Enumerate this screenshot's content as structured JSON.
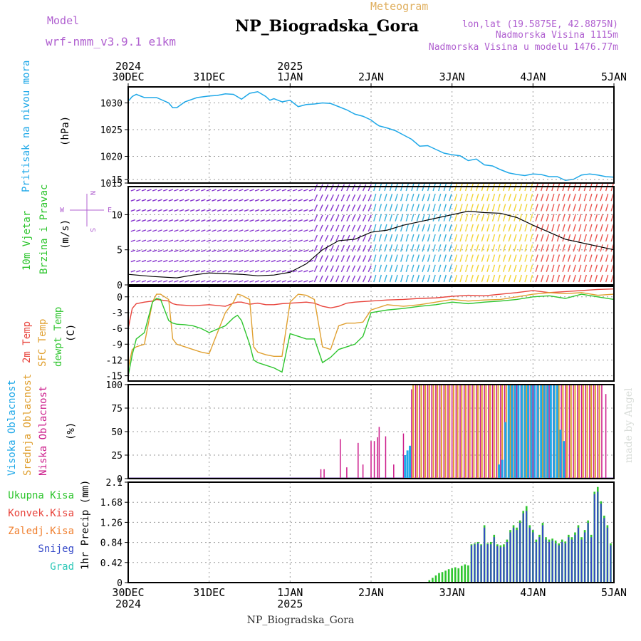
{
  "header": {
    "model_label": "Model",
    "model_name": "wrf-nmm_v3.9.1 e1km",
    "title": "NP_Biogradska_Gora",
    "meteogram_label": "Meteogram",
    "coords": "lon,lat (19.5875E, 42.8875N)",
    "altitude": "Nadmorska Visina 1115m",
    "model_altitude": "Nadmorska Visina u modelu 1476.77m"
  },
  "footer": {
    "station": "NP_Biogradska_Gora",
    "watermark": "made by Angel"
  },
  "time_axis": {
    "labels": [
      "30DEC",
      "31DEC",
      "1JAN",
      "2JAN",
      "3JAN",
      "4JAN",
      "5JAN"
    ],
    "years": [
      {
        "at": 0,
        "label": "2024"
      },
      {
        "at": 2,
        "label": "2025"
      }
    ],
    "day_count": 6
  },
  "colors": {
    "pressure": "#1fa8e8",
    "temp2m": "#e8443c",
    "sfc_temp": "#e0a030",
    "dewpt": "#2ec52e",
    "high_cloud": "#1fa8e8",
    "mid_cloud": "#e0a030",
    "low_cloud": "#cc1a8a",
    "total_precip": "#2ec52e",
    "conv_precip": "#e8443c",
    "frozen_precip": "#f08030",
    "snow": "#3448c8",
    "graupel": "#2ec8b8"
  },
  "panels": {
    "pressure": {
      "label1": "Pritisak na nivou mora",
      "unit": "(hPa)"
    },
    "wind": {
      "label1": "10m Vjetar",
      "label2": "Brzina i Pravac",
      "unit": "(m/s)"
    },
    "temp": {
      "label1": "2m Temp",
      "label2": "SFC Temp",
      "label3": "dewpt Temp",
      "unit": "(C)"
    },
    "cloud": {
      "label1": "Visoka Oblacnost",
      "label2": "Srednja Oblacnost",
      "label3": "Niska Oblacnost",
      "unit": "(%)"
    },
    "precip": {
      "label1": "Ukupna Kisa",
      "label2": "Konvek.Kisa",
      "label3": "Zaledj.Kisa",
      "label4": "Snijeg",
      "label5": "Grad",
      "ylabel": "1hr Precip (mm)"
    }
  },
  "compass": {
    "n": "N",
    "s": "S",
    "w": "W",
    "e": "E"
  },
  "chart_data": [
    {
      "type": "line",
      "name": "pressure",
      "x_days": [
        0,
        0.05,
        0.1,
        0.2,
        0.35,
        0.5,
        0.55,
        0.6,
        0.7,
        0.85,
        1.0,
        1.1,
        1.2,
        1.3,
        1.4,
        1.5,
        1.6,
        1.7,
        1.75,
        1.8,
        1.9,
        2.0,
        2.1,
        2.2,
        2.3,
        2.4,
        2.5,
        2.6,
        2.7,
        2.8,
        2.9,
        3.0,
        3.05,
        3.1,
        3.2,
        3.3,
        3.4,
        3.5,
        3.6,
        3.7,
        3.8,
        3.9,
        4.0,
        4.1,
        4.2,
        4.3,
        4.4,
        4.5,
        4.6,
        4.7,
        4.8,
        4.9,
        5.0,
        5.1,
        5.2,
        5.3,
        5.4,
        5.5,
        5.6,
        5.7,
        5.8,
        5.9,
        6.0
      ],
      "y": [
        1030.3,
        1031.2,
        1031.6,
        1031.0,
        1031.0,
        1030.0,
        1029.1,
        1029.1,
        1030.2,
        1031.0,
        1031.3,
        1031.4,
        1031.7,
        1031.6,
        1030.7,
        1031.8,
        1032.1,
        1031.2,
        1030.5,
        1030.8,
        1030.2,
        1030.5,
        1029.3,
        1029.7,
        1029.8,
        1030.0,
        1029.9,
        1029.3,
        1028.7,
        1027.9,
        1027.5,
        1026.8,
        1026.2,
        1025.7,
        1025.3,
        1024.8,
        1024.0,
        1023.2,
        1021.9,
        1022.0,
        1021.3,
        1020.6,
        1020.3,
        1020.1,
        1019.2,
        1019.5,
        1018.4,
        1018.2,
        1017.5,
        1016.9,
        1016.6,
        1016.4,
        1016.7,
        1016.6,
        1016.2,
        1016.2,
        1015.5,
        1015.7,
        1016.5,
        1016.7,
        1016.5,
        1016.2,
        1016.1
      ],
      "ylim": [
        1015,
        1033
      ],
      "ticks": [
        1015,
        1020,
        1025,
        1030
      ]
    },
    {
      "type": "line",
      "name": "wind",
      "x_days": [
        0,
        0.3,
        0.6,
        0.8,
        1.0,
        1.2,
        1.4,
        1.6,
        1.8,
        2.0,
        2.2,
        2.4,
        2.6,
        2.8,
        3.0,
        3.2,
        3.4,
        3.6,
        3.8,
        4.0,
        4.2,
        4.4,
        4.6,
        4.8,
        5.0,
        5.2,
        5.4,
        5.6,
        5.8,
        6.0
      ],
      "y": [
        1.5,
        1.2,
        1.0,
        1.4,
        1.7,
        1.6,
        1.5,
        1.3,
        1.4,
        1.8,
        3.0,
        5.0,
        6.3,
        6.5,
        7.5,
        7.8,
        8.5,
        9.0,
        9.5,
        10.0,
        10.5,
        10.3,
        10.2,
        9.6,
        8.5,
        7.5,
        6.5,
        6.0,
        5.5,
        5.0
      ],
      "barb_colors_by_day": [
        "#7a20c8",
        "#7a20c8",
        "#7a20c8",
        "#22a8d8",
        "#f0d020",
        "#e8443c"
      ],
      "ylim": [
        0,
        14
      ],
      "ticks": [
        0,
        5,
        10,
        15
      ]
    },
    {
      "type": "line",
      "name": "temperature",
      "x_days": [
        0,
        0.05,
        0.1,
        0.2,
        0.3,
        0.35,
        0.4,
        0.5,
        0.55,
        0.6,
        0.7,
        0.8,
        0.9,
        1.0,
        1.2,
        1.3,
        1.35,
        1.4,
        1.5,
        1.55,
        1.6,
        1.7,
        1.8,
        1.9,
        2.0,
        2.1,
        2.2,
        2.3,
        2.4,
        2.5,
        2.6,
        2.7,
        2.8,
        2.9,
        3.0,
        3.2,
        3.4,
        3.6,
        3.8,
        4.0,
        4.2,
        4.4,
        4.6,
        4.8,
        5.0,
        5.2,
        5.4,
        5.6,
        5.8,
        6.0
      ],
      "series": [
        {
          "name": "2m Temp",
          "values": [
            -6.0,
            -2.2,
            -1.3,
            -1.0,
            -0.8,
            -0.5,
            -0.6,
            -0.8,
            -1.3,
            -1.5,
            -1.6,
            -1.7,
            -1.6,
            -1.5,
            -1.8,
            -1.2,
            -1.0,
            -1.0,
            -1.4,
            -1.3,
            -1.2,
            -1.5,
            -1.5,
            -1.3,
            -1.2,
            -1.1,
            -1.0,
            -1.2,
            -1.8,
            -2.1,
            -1.8,
            -1.2,
            -1.0,
            -0.9,
            -0.8,
            -0.6,
            -0.5,
            -0.3,
            -0.2,
            0.1,
            0.3,
            0.2,
            0.5,
            0.8,
            1.2,
            0.8,
            1.0,
            1.2,
            1.4,
            1.5
          ]
        },
        {
          "name": "SFC Temp",
          "values": [
            -13.5,
            -10.0,
            -9.5,
            -9.0,
            -1.0,
            0.5,
            0.5,
            -0.5,
            -8.0,
            -9.0,
            -9.5,
            -10.0,
            -10.5,
            -10.8,
            -3.0,
            -1.0,
            0.5,
            0.3,
            -0.5,
            -9.5,
            -10.5,
            -11.0,
            -11.3,
            -11.3,
            -1.0,
            0.5,
            0.3,
            -0.5,
            -9.5,
            -10.0,
            -5.5,
            -5.0,
            -5.0,
            -4.8,
            -2.5,
            -1.5,
            -1.8,
            -1.5,
            -1.0,
            -0.5,
            -0.8,
            -0.6,
            -0.5,
            0.0,
            0.5,
            0.8,
            0.6,
            0.8,
            0.3,
            0.5
          ]
        },
        {
          "name": "dewpt Temp",
          "values": [
            -15.0,
            -11.0,
            -8.0,
            -6.8,
            -1.0,
            -0.3,
            -0.5,
            -4.5,
            -5.0,
            -5.2,
            -5.3,
            -5.5,
            -6.0,
            -6.8,
            -5.5,
            -4.0,
            -3.5,
            -4.5,
            -9.0,
            -12.0,
            -12.5,
            -13.0,
            -13.5,
            -14.3,
            -7.0,
            -7.5,
            -8.0,
            -8.0,
            -12.5,
            -11.5,
            -10.0,
            -9.5,
            -9.0,
            -7.5,
            -3.0,
            -2.5,
            -2.2,
            -1.8,
            -1.5,
            -1.0,
            -1.3,
            -1.0,
            -0.8,
            -0.5,
            0.0,
            0.2,
            -0.3,
            0.5,
            0.0,
            -0.5
          ]
        }
      ],
      "ylim": [
        -16,
        2
      ],
      "ticks": [
        -15,
        -12,
        -9,
        -6,
        -3,
        0
      ]
    },
    {
      "type": "bar",
      "name": "cloud_cover",
      "series": [
        {
          "name": "Niska Oblacnost",
          "x_days": [
            2.38,
            2.42,
            2.62,
            2.7,
            2.84,
            2.9,
            3.0,
            3.04,
            3.08,
            3.1,
            3.18,
            3.28,
            3.4,
            3.45,
            3.5,
            3.55,
            3.6,
            3.65,
            3.7,
            3.75,
            3.8,
            3.85,
            3.9,
            3.95,
            4.0,
            4.05,
            4.1,
            4.15,
            4.2,
            4.25,
            4.3,
            4.35,
            4.4,
            4.45,
            4.5,
            4.55,
            4.6,
            4.65,
            4.7,
            4.75,
            4.8,
            4.85,
            4.9,
            4.95,
            5.0,
            5.05,
            5.1,
            5.15,
            5.2,
            5.25,
            5.3,
            5.35,
            5.4,
            5.45,
            5.5,
            5.55,
            5.6,
            5.65,
            5.7,
            5.75,
            5.8,
            5.85,
            5.9
          ],
          "values": [
            10,
            10,
            42,
            12,
            38,
            15,
            40,
            40,
            44,
            55,
            45,
            15,
            48,
            8,
            95,
            100,
            100,
            100,
            100,
            100,
            100,
            100,
            100,
            100,
            100,
            100,
            100,
            100,
            100,
            100,
            100,
            100,
            100,
            100,
            100,
            100,
            100,
            100,
            100,
            100,
            100,
            100,
            100,
            100,
            100,
            100,
            100,
            100,
            100,
            100,
            100,
            100,
            100,
            100,
            100,
            100,
            100,
            100,
            100,
            100,
            100,
            100,
            90
          ]
        },
        {
          "name": "Srednja Oblacnost",
          "x_days": [
            3.52,
            3.57,
            3.62,
            3.67,
            3.72,
            3.77,
            3.82,
            3.87,
            3.92,
            3.97,
            4.02,
            4.07,
            4.12,
            4.17,
            4.22,
            4.27,
            4.32,
            4.37,
            4.42,
            4.47,
            4.52,
            4.57,
            4.62,
            4.67,
            4.72,
            4.77,
            4.82,
            4.87,
            4.92,
            4.97,
            5.02,
            5.07,
            5.12,
            5.17,
            5.22,
            5.27,
            5.32,
            5.37,
            5.42,
            5.47,
            5.52,
            5.57,
            5.62,
            5.67,
            5.72,
            5.77,
            5.82
          ],
          "values": [
            100,
            100,
            100,
            100,
            100,
            100,
            100,
            100,
            100,
            100,
            100,
            100,
            100,
            100,
            100,
            100,
            100,
            100,
            100,
            100,
            100,
            100,
            100,
            100,
            100,
            100,
            100,
            100,
            100,
            100,
            100,
            100,
            100,
            100,
            100,
            100,
            100,
            100,
            100,
            100,
            100,
            100,
            100,
            100,
            100,
            100,
            100
          ]
        },
        {
          "name": "Visoka Oblacnost",
          "x_days": [
            3.42,
            3.45,
            3.48,
            4.58,
            4.62,
            4.66,
            4.7,
            4.74,
            4.78,
            4.82,
            4.86,
            4.9,
            4.94,
            4.98,
            5.02,
            5.06,
            5.1,
            5.14,
            5.18,
            5.22,
            5.26,
            5.3,
            5.34,
            5.38
          ],
          "values": [
            25,
            30,
            35,
            15,
            20,
            60,
            100,
            100,
            100,
            100,
            100,
            100,
            100,
            100,
            100,
            100,
            100,
            100,
            100,
            100,
            100,
            100,
            52,
            40
          ]
        }
      ],
      "ylim": [
        0,
        100
      ],
      "ticks": [
        0,
        25,
        50,
        75,
        100
      ]
    },
    {
      "type": "bar",
      "name": "precipitation",
      "x_days": [
        3.72,
        3.76,
        3.8,
        3.84,
        3.88,
        3.92,
        3.96,
        4.0,
        4.04,
        4.08,
        4.12,
        4.16,
        4.2,
        4.24,
        4.28,
        4.32,
        4.36,
        4.4,
        4.44,
        4.48,
        4.52,
        4.56,
        4.6,
        4.64,
        4.68,
        4.72,
        4.76,
        4.8,
        4.84,
        4.88,
        4.92,
        4.96,
        5.0,
        5.04,
        5.08,
        5.12,
        5.16,
        5.2,
        5.24,
        5.28,
        5.32,
        5.36,
        5.4,
        5.44,
        5.48,
        5.52,
        5.56,
        5.6,
        5.64,
        5.68,
        5.72,
        5.76,
        5.8,
        5.84,
        5.88,
        5.92,
        5.96
      ],
      "series": [
        {
          "name": "Ukupna Kisa",
          "values": [
            0.05,
            0.1,
            0.15,
            0.2,
            0.22,
            0.25,
            0.28,
            0.3,
            0.32,
            0.3,
            0.35,
            0.38,
            0.36,
            0.8,
            0.82,
            0.85,
            0.8,
            1.2,
            0.82,
            0.85,
            1.0,
            0.8,
            0.78,
            0.8,
            0.9,
            1.1,
            1.2,
            1.15,
            1.3,
            1.5,
            1.6,
            1.2,
            1.1,
            0.9,
            1.0,
            1.25,
            0.95,
            0.9,
            0.92,
            0.88,
            0.82,
            0.9,
            0.86,
            1.0,
            0.95,
            1.05,
            1.2,
            0.95,
            1.1,
            1.3,
            1.0,
            1.9,
            2.0,
            1.7,
            1.4,
            1.2,
            0.82
          ]
        },
        {
          "name": "Snijeg",
          "values": [
            0,
            0,
            0,
            0,
            0,
            0,
            0,
            0,
            0,
            0,
            0,
            0,
            0,
            0.78,
            0.8,
            0.82,
            0.78,
            1.15,
            0.8,
            0.8,
            0.95,
            0.76,
            0.74,
            0.75,
            0.85,
            1.05,
            1.15,
            1.1,
            1.25,
            1.45,
            1.5,
            1.15,
            1.05,
            0.85,
            0.95,
            1.2,
            0.9,
            0.85,
            0.88,
            0.82,
            0.78,
            0.85,
            0.82,
            0.95,
            0.9,
            1.0,
            1.15,
            0.9,
            1.05,
            1.25,
            0.95,
            1.85,
            1.9,
            1.65,
            1.35,
            1.15,
            0.78
          ]
        }
      ],
      "ylim": [
        0,
        2.1
      ],
      "ticks": [
        0,
        0.42,
        0.84,
        1.26,
        1.68,
        2.1
      ]
    }
  ]
}
